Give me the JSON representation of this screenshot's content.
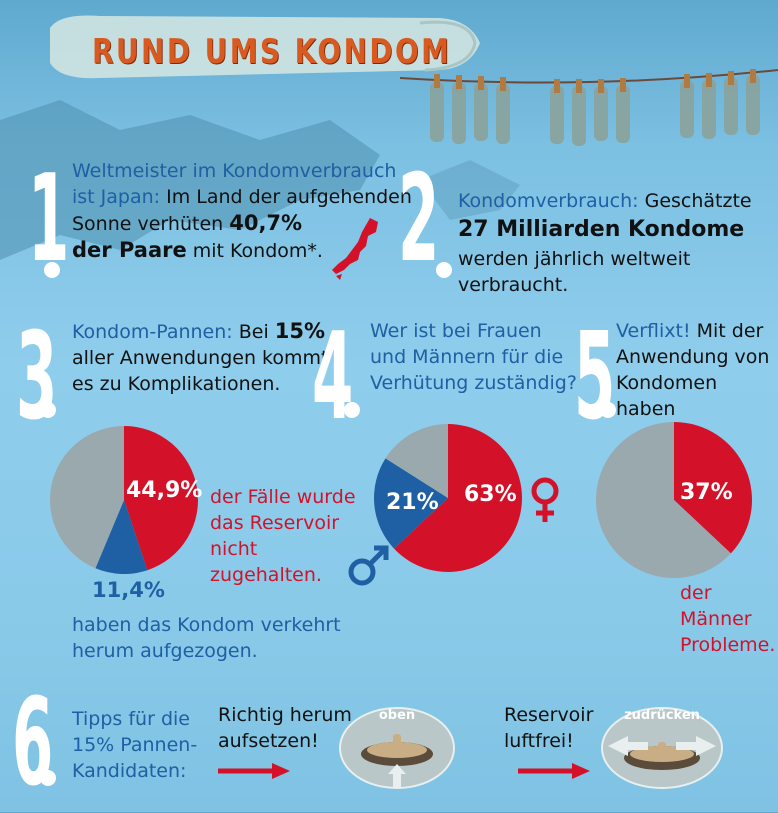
{
  "title": "RUND UMS KONDOM",
  "colors": {
    "red": "#d3122a",
    "blue": "#1f5fa3",
    "gray": "#9aa9ad"
  },
  "section1": {
    "number": "1",
    "line1": "Weltmeister im Kondomverbrauch",
    "line2_blue": "ist Japan:",
    "line2_rest": " Im Land der aufgehenden",
    "line3": "Sonne verhüten ",
    "line3_bold": "40,7%",
    "line4_bold": "der Paare",
    "line4_rest": " mit Kondom*."
  },
  "section2": {
    "number": "2",
    "line1_blue": "Kondomverbrauch:",
    "line1_rest": " Geschätzte",
    "line2_bold": "27 Milliarden Kondome",
    "line3": "werden jährlich weltweit verbraucht."
  },
  "section3": {
    "number": "3",
    "line1_blue": "Kondom-Pannen:",
    "line1_rest": " Bei ",
    "line1_bold": "15%",
    "line2": "aller Anwendungen kommt",
    "line3": "es zu Komplikationen.",
    "pct_red": "44,9%",
    "pct_blue": "11,4%",
    "red_note": [
      "der Fälle wurde",
      "das Reservoir",
      "nicht",
      "zugehalten."
    ],
    "blue_note": [
      "haben das Kondom verkehrt",
      "herum aufgezogen."
    ]
  },
  "section4": {
    "number": "4",
    "lines": [
      "Wer ist bei Frauen",
      "und Männern für die",
      "Verhütung zuständig?"
    ],
    "pct_female": "63%",
    "pct_male": "21%"
  },
  "section5": {
    "number": "5",
    "line1_blue": "Verflixt!",
    "line1_rest": " Mit der",
    "line2": "Anwendung von",
    "line3": "Kondomen haben",
    "pct": "37%",
    "note": [
      "der Männer",
      "Probleme."
    ]
  },
  "section6": {
    "number": "6",
    "lines_blue": [
      "Tipps für die",
      "15% Pannen-",
      "Kandidaten:"
    ],
    "tip1": [
      "Richtig herum",
      "aufsetzen!"
    ],
    "tip1_label": "oben",
    "tip2": [
      "Reservoir",
      "luftfrei!"
    ],
    "tip2_label": "zudrücken"
  },
  "chart_data": [
    {
      "type": "pie",
      "title": "",
      "slices": [
        {
          "label": "44,9%",
          "value": 44.9,
          "color": "#d3122a"
        },
        {
          "label": "11,4%",
          "value": 11.4,
          "color": "#1f5fa3"
        },
        {
          "label": "",
          "value": 43.7,
          "color": "#9aa9ad"
        }
      ]
    },
    {
      "type": "pie",
      "title": "",
      "slices": [
        {
          "label": "63%",
          "value": 63,
          "color": "#d3122a"
        },
        {
          "label": "21%",
          "value": 21,
          "color": "#1f5fa3"
        },
        {
          "label": "",
          "value": 16,
          "color": "#9aa9ad"
        }
      ]
    },
    {
      "type": "pie",
      "title": "",
      "slices": [
        {
          "label": "37%",
          "value": 37,
          "color": "#d3122a"
        },
        {
          "label": "",
          "value": 63,
          "color": "#9aa9ad"
        }
      ]
    }
  ]
}
